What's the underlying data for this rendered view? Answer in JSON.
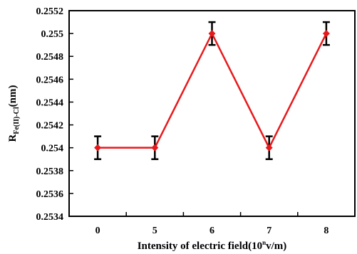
{
  "chart_data": {
    "type": "line",
    "categories": [
      "0",
      "5",
      "6",
      "7",
      "8"
    ],
    "series": [
      {
        "values": [
          0.254,
          0.254,
          0.255,
          0.254,
          0.255
        ],
        "error": [
          0.0001,
          0.0001,
          0.0001,
          0.0001,
          0.0001
        ],
        "color": "#e8191b"
      }
    ],
    "ylim": [
      0.2534,
      0.2552
    ],
    "yticks": [
      "0.2534",
      "0.2536",
      "0.2538",
      "0.254",
      "0.2542",
      "0.2544",
      "0.2546",
      "0.2548",
      "0.255",
      "0.2552"
    ],
    "ylabel": {
      "main": "R",
      "subscript": "Fe(II)-Cl",
      "suffix": "(nm)"
    },
    "xlabel": {
      "prefix": "Intensity of electric field(10",
      "superscript": "n",
      "suffix": "v/m)"
    },
    "marker": "diamond",
    "grid": false,
    "axis_color": "#000000",
    "errorbar_color": "#000000"
  }
}
